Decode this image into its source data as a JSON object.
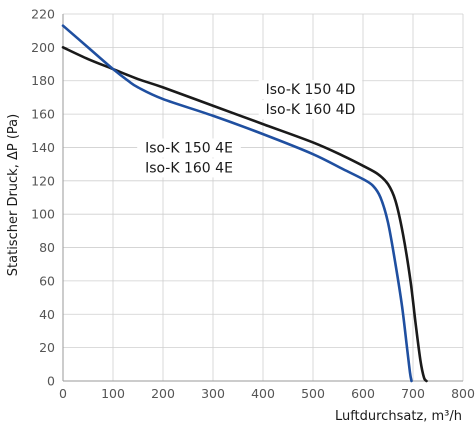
{
  "chart_data": {
    "type": "line",
    "title": "",
    "xlabel": "Luftdurchsatz, m³/h",
    "ylabel": "Statischer Druck, ΔP (Pa)",
    "xlim": [
      0,
      800
    ],
    "ylim": [
      0,
      220
    ],
    "xticks": [
      0,
      100,
      200,
      300,
      400,
      500,
      600,
      700,
      800
    ],
    "yticks": [
      0,
      20,
      40,
      60,
      80,
      100,
      120,
      140,
      160,
      180,
      200,
      220
    ],
    "grid": true,
    "series": [
      {
        "name": "Iso-K 150 4D / Iso-K 160 4D",
        "color": "#1a1a1a",
        "points": [
          [
            0,
            200
          ],
          [
            50,
            193
          ],
          [
            100,
            187
          ],
          [
            150,
            181
          ],
          [
            200,
            176
          ],
          [
            300,
            165
          ],
          [
            400,
            154
          ],
          [
            500,
            143
          ],
          [
            560,
            135
          ],
          [
            600,
            129
          ],
          [
            630,
            124
          ],
          [
            650,
            118
          ],
          [
            665,
            108
          ],
          [
            680,
            88
          ],
          [
            695,
            60
          ],
          [
            705,
            35
          ],
          [
            715,
            12
          ],
          [
            722,
            2
          ],
          [
            727,
            0
          ]
        ]
      },
      {
        "name": "Iso-K 150 4E / Iso-K 160 4E",
        "color": "#1f4fa0",
        "points": [
          [
            0,
            213
          ],
          [
            50,
            200
          ],
          [
            100,
            187
          ],
          [
            130,
            180
          ],
          [
            150,
            176
          ],
          [
            200,
            169
          ],
          [
            300,
            159
          ],
          [
            400,
            148
          ],
          [
            500,
            136
          ],
          [
            560,
            127
          ],
          [
            600,
            121
          ],
          [
            620,
            117
          ],
          [
            635,
            110
          ],
          [
            650,
            95
          ],
          [
            665,
            70
          ],
          [
            678,
            45
          ],
          [
            688,
            20
          ],
          [
            694,
            5
          ],
          [
            697,
            0
          ]
        ]
      }
    ],
    "annotations": [
      {
        "lines": [
          "Iso-K 150 4D",
          "Iso-K 160 4D"
        ],
        "x": 495,
        "y": 172
      },
      {
        "lines": [
          "Iso-K 150 4E",
          "Iso-K 160 4E"
        ],
        "x": 252,
        "y": 137
      }
    ]
  }
}
